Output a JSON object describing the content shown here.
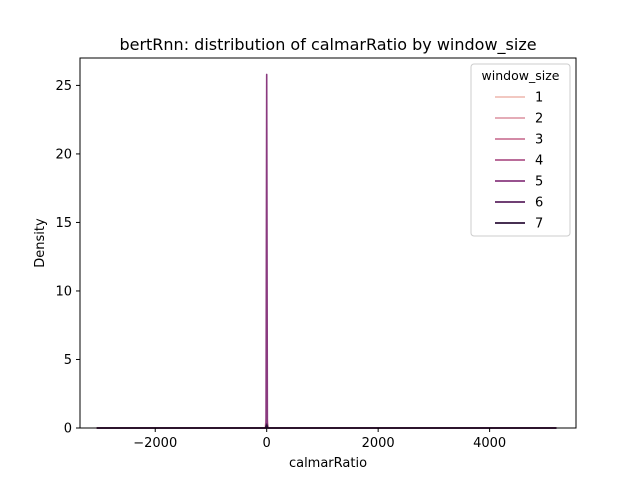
{
  "chart_data": {
    "type": "line",
    "title": "bertRnn: distribution of calmarRatio by window_size",
    "xlabel": "calmarRatio",
    "ylabel": "Density",
    "xlim": [
      -3350,
      5550
    ],
    "ylim": [
      0,
      27
    ],
    "xticks": [
      -2000,
      0,
      2000,
      4000
    ],
    "xtick_labels": [
      "−2000",
      "0",
      "2000",
      "4000"
    ],
    "yticks": [
      0,
      5,
      10,
      15,
      20,
      25
    ],
    "ytick_labels": [
      "0",
      "5",
      "10",
      "15",
      "20",
      "25"
    ],
    "grid": false,
    "legend": {
      "title": "window_size",
      "placement": "top-right"
    },
    "series": [
      {
        "name": "1",
        "color": "#f1c0b8",
        "x": [
          -3050,
          -30,
          0,
          30,
          5200
        ],
        "y": [
          0,
          0,
          0.9,
          0,
          0
        ]
      },
      {
        "name": "2",
        "color": "#e0a1ad",
        "x": [
          -3050,
          -20,
          0,
          20,
          5200
        ],
        "y": [
          0,
          0,
          0.5,
          0,
          0
        ]
      },
      {
        "name": "3",
        "color": "#cd7a99",
        "x": [
          -3050,
          -20,
          0,
          20,
          5200
        ],
        "y": [
          0,
          0,
          0.4,
          0,
          0
        ]
      },
      {
        "name": "4",
        "color": "#b0588c",
        "x": [
          -3050,
          -20,
          0,
          20,
          5200
        ],
        "y": [
          0,
          0,
          0.6,
          0,
          0
        ]
      },
      {
        "name": "5",
        "color": "#8a3a7f",
        "x": [
          -3050,
          -12,
          0,
          12,
          5200
        ],
        "y": [
          0,
          0,
          25.8,
          0,
          0
        ]
      },
      {
        "name": "6",
        "color": "#5c2561",
        "x": [
          -3050,
          -20,
          0,
          20,
          5200
        ],
        "y": [
          0,
          0,
          0.3,
          0,
          0
        ]
      },
      {
        "name": "7",
        "color": "#2d1239",
        "x": [
          -3050,
          -20,
          0,
          20,
          5200
        ],
        "y": [
          0,
          0,
          0.2,
          0,
          0
        ]
      }
    ]
  }
}
